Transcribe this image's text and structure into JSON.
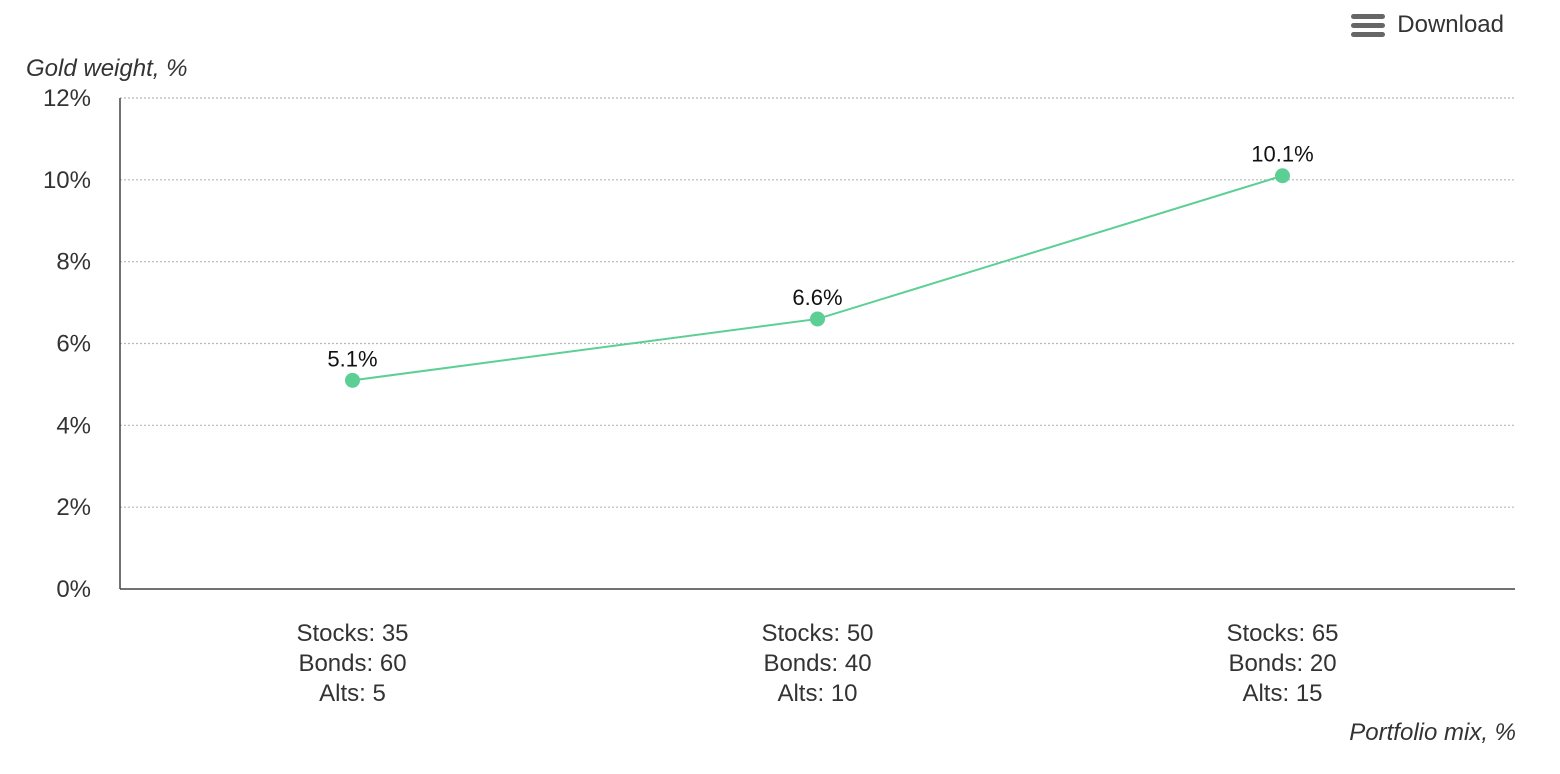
{
  "toolbar": {
    "download_label": "Download",
    "menu_icon": "hamburger-menu-icon"
  },
  "chart_data": {
    "type": "line",
    "title": "",
    "xlabel": "Portfolio mix, %",
    "ylabel": "Gold weight, %",
    "categories": [
      [
        "Stocks: 35",
        "Bonds: 60",
        "Alts: 5"
      ],
      [
        "Stocks: 50",
        "Bonds: 40",
        "Alts: 10"
      ],
      [
        "Stocks: 65",
        "Bonds: 20",
        "Alts: 15"
      ]
    ],
    "series": [
      {
        "values": [
          5.1,
          6.6,
          10.1
        ],
        "labels": [
          "5.1%",
          "6.6%",
          "10.1%"
        ],
        "color": "#5ccf95"
      }
    ],
    "ylim": [
      0,
      12
    ],
    "yticks": [
      0,
      2,
      4,
      6,
      8,
      10,
      12
    ],
    "ytick_labels": [
      "0%",
      "2%",
      "4%",
      "6%",
      "8%",
      "10%",
      "12%"
    ],
    "grid": true,
    "legend": "none"
  }
}
